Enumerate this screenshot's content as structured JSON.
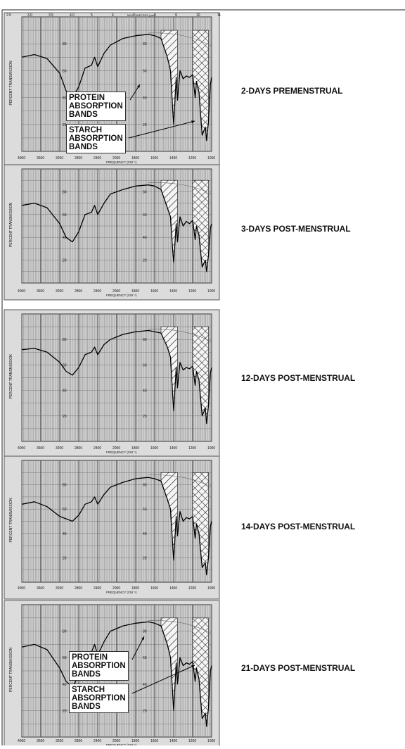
{
  "chart_data": [
    {
      "type": "line",
      "label": "2-DAYS PREMENSTRUAL",
      "xlabel": "FREQUENCY (CM⁻¹)",
      "ylabel": "PERCENT TRANSMISSION",
      "top_axis_label": "MICROMETERS (μm)",
      "top_ticks": [
        "2.5",
        "3.0",
        "3.5",
        "4.0",
        "5",
        "6",
        "7",
        "8",
        "9",
        "10",
        "11"
      ],
      "x_ticks": [
        "4000",
        "3600",
        "3200",
        "2800",
        "2400",
        "2000",
        "1800",
        "1600",
        "1400",
        "1200",
        "1000"
      ],
      "y_ticks": [
        "80",
        "60",
        "40",
        "20"
      ],
      "x": [
        4000,
        3800,
        3600,
        3400,
        3300,
        3200,
        3100,
        3000,
        2900,
        2850,
        2800,
        2700,
        2600,
        2400,
        2200,
        2000,
        1900,
        1800,
        1700,
        1650,
        1620,
        1600,
        1560,
        1540,
        1500,
        1450,
        1400,
        1350,
        1300,
        1260,
        1240,
        1200,
        1150,
        1100,
        1080,
        1050,
        1020,
        1000
      ],
      "y": [
        70,
        72,
        69,
        58,
        45,
        40,
        48,
        62,
        64,
        70,
        63,
        73,
        79,
        84,
        86,
        87,
        86,
        84,
        70,
        60,
        35,
        20,
        55,
        38,
        60,
        54,
        56,
        55,
        57,
        40,
        52,
        44,
        12,
        18,
        8,
        22,
        50,
        55
      ],
      "annotations": [
        {
          "text": [
            "PROTEIN",
            "ABSORPTION",
            "BANDS"
          ]
        },
        {
          "text": [
            "STARCH",
            "ABSORPTION",
            "BANDS"
          ]
        }
      ]
    },
    {
      "type": "line",
      "label": "3-DAYS POST-MENSTRUAL",
      "xlabel": "FREQUENCY (CM⁻¹)",
      "ylabel": "PERCENT TRANSMISSION",
      "x_ticks": [
        "4000",
        "3600",
        "3200",
        "2800",
        "2400",
        "2000",
        "1800",
        "1600",
        "1400",
        "1200",
        "1000"
      ],
      "y_ticks": [
        "80",
        "60",
        "40",
        "20"
      ],
      "x": [
        4000,
        3800,
        3600,
        3400,
        3300,
        3200,
        3100,
        3000,
        2900,
        2850,
        2800,
        2700,
        2600,
        2400,
        2200,
        2000,
        1900,
        1800,
        1700,
        1650,
        1620,
        1600,
        1560,
        1540,
        1500,
        1450,
        1400,
        1350,
        1300,
        1260,
        1240,
        1200,
        1150,
        1100,
        1080,
        1050,
        1020,
        1000
      ],
      "y": [
        68,
        70,
        66,
        52,
        40,
        36,
        45,
        60,
        62,
        68,
        60,
        70,
        78,
        82,
        85,
        86,
        85,
        82,
        66,
        58,
        32,
        18,
        52,
        36,
        58,
        50,
        54,
        52,
        55,
        38,
        50,
        42,
        14,
        20,
        10,
        24,
        48,
        52
      ]
    },
    {
      "type": "line",
      "label": "12-DAYS POST-MENSTRUAL",
      "xlabel": "FREQUENCY (CM⁻¹)",
      "ylabel": "PERCENT TRANSMISSION",
      "x_ticks": [
        "4000",
        "3600",
        "3200",
        "2800",
        "2400",
        "2000",
        "1800",
        "1600",
        "1400",
        "1200",
        "1000"
      ],
      "y_ticks": [
        "80",
        "60",
        "40",
        "20"
      ],
      "x": [
        4000,
        3800,
        3600,
        3400,
        3300,
        3200,
        3100,
        3000,
        2900,
        2850,
        2800,
        2700,
        2600,
        2400,
        2200,
        2000,
        1900,
        1800,
        1700,
        1650,
        1620,
        1600,
        1560,
        1540,
        1500,
        1450,
        1400,
        1350,
        1300,
        1260,
        1240,
        1200,
        1150,
        1100,
        1080,
        1050,
        1020,
        1000
      ],
      "y": [
        72,
        73,
        70,
        62,
        55,
        52,
        58,
        68,
        70,
        74,
        68,
        76,
        80,
        84,
        86,
        87,
        86,
        85,
        74,
        66,
        40,
        24,
        58,
        42,
        62,
        56,
        58,
        57,
        59,
        44,
        55,
        48,
        20,
        26,
        14,
        28,
        54,
        58
      ]
    },
    {
      "type": "line",
      "label": "14-DAYS POST-MENSTRUAL",
      "xlabel": "FREQUENCY (CM⁻¹)",
      "ylabel": "PERCENT TRANSMISSION",
      "x_ticks": [
        "4000",
        "3600",
        "3200",
        "2800",
        "2400",
        "2000",
        "1800",
        "1600",
        "1400",
        "1200",
        "1000"
      ],
      "y_ticks": [
        "80",
        "60",
        "40",
        "20"
      ],
      "x": [
        4000,
        3800,
        3600,
        3400,
        3300,
        3200,
        3100,
        3000,
        2900,
        2850,
        2800,
        2700,
        2600,
        2400,
        2200,
        2000,
        1900,
        1800,
        1700,
        1650,
        1620,
        1600,
        1560,
        1540,
        1500,
        1450,
        1400,
        1350,
        1300,
        1260,
        1240,
        1200,
        1150,
        1100,
        1080,
        1050,
        1020,
        1000
      ],
      "y": [
        64,
        66,
        62,
        54,
        52,
        50,
        55,
        64,
        66,
        70,
        64,
        72,
        78,
        82,
        85,
        86,
        85,
        83,
        68,
        60,
        34,
        18,
        54,
        38,
        58,
        50,
        53,
        52,
        54,
        36,
        48,
        40,
        12,
        16,
        6,
        20,
        46,
        50
      ]
    },
    {
      "type": "line",
      "label": "21-DAYS POST-MENSTRUAL",
      "xlabel": "FREQUENCY (CM⁻¹)",
      "ylabel": "PERCENT TRANSMISSION",
      "x_ticks": [
        "4000",
        "3600",
        "3200",
        "2800",
        "2400",
        "2000",
        "1800",
        "1600",
        "1400",
        "1200",
        "1000"
      ],
      "y_ticks": [
        "80",
        "60",
        "40",
        "20"
      ],
      "x": [
        4000,
        3800,
        3600,
        3400,
        3300,
        3200,
        3100,
        3000,
        2900,
        2850,
        2800,
        2700,
        2600,
        2400,
        2200,
        2000,
        1900,
        1800,
        1700,
        1650,
        1620,
        1600,
        1560,
        1540,
        1500,
        1450,
        1400,
        1350,
        1300,
        1260,
        1240,
        1200,
        1150,
        1100,
        1080,
        1050,
        1020,
        1000
      ],
      "y": [
        68,
        70,
        66,
        52,
        42,
        38,
        46,
        62,
        64,
        70,
        62,
        72,
        80,
        84,
        86,
        87,
        86,
        84,
        70,
        60,
        36,
        20,
        56,
        40,
        60,
        54,
        56,
        55,
        57,
        42,
        52,
        44,
        14,
        18,
        8,
        22,
        50,
        54
      ],
      "annotations": [
        {
          "text": [
            "PROTEIN",
            "ABSORPTION",
            "BANDS"
          ]
        },
        {
          "text": [
            "STARCH",
            "ABSORPTION",
            "BANDS"
          ]
        }
      ]
    }
  ]
}
